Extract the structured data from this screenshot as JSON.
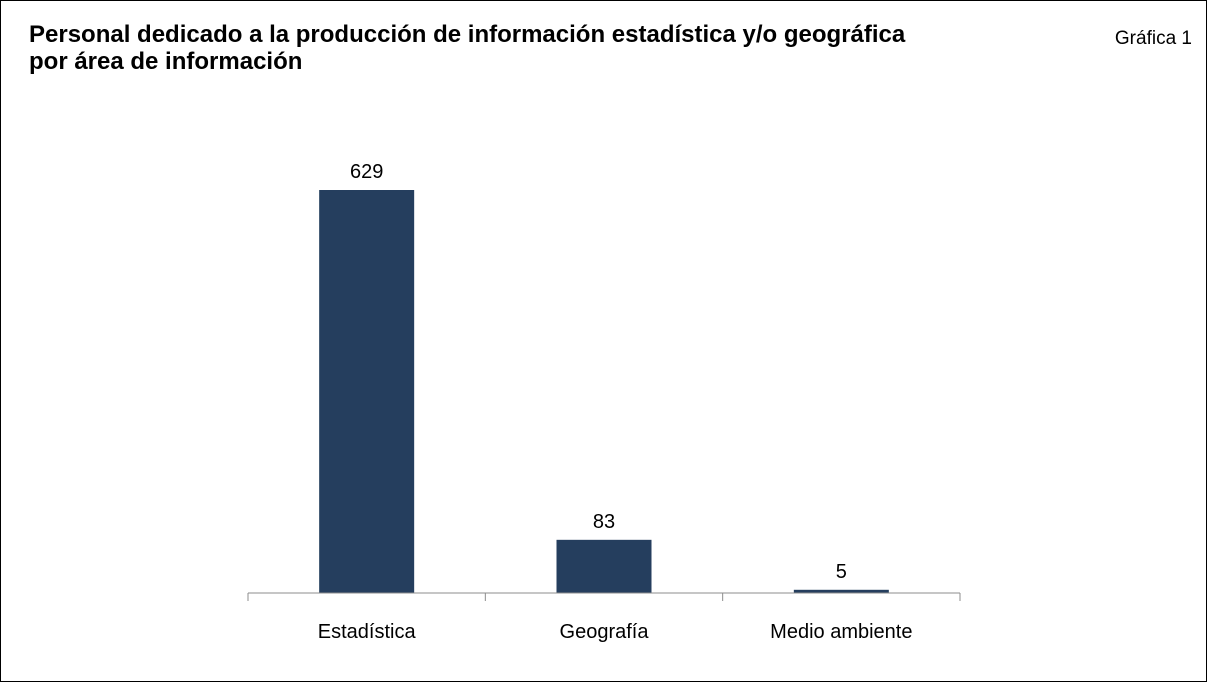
{
  "header": {
    "title": "Personal dedicado a la producción de información estadística y/o geográfica por área de información",
    "chart_number": "Gráfica 1"
  },
  "colors": {
    "bar": "#253e5e",
    "axis": "#8c8c8c",
    "text": "#000000"
  },
  "chart_data": {
    "type": "bar",
    "title": "Personal dedicado a la producción de información estadística y/o geográfica por área de información",
    "categories": [
      "Estadística",
      "Geografía",
      "Medio ambiente"
    ],
    "values": [
      629,
      83,
      5
    ],
    "data_labels": [
      "629",
      "83",
      "5"
    ],
    "xlabel": "",
    "ylabel": "",
    "ylim": [
      0,
      629
    ],
    "grid": false,
    "legend": "none"
  }
}
